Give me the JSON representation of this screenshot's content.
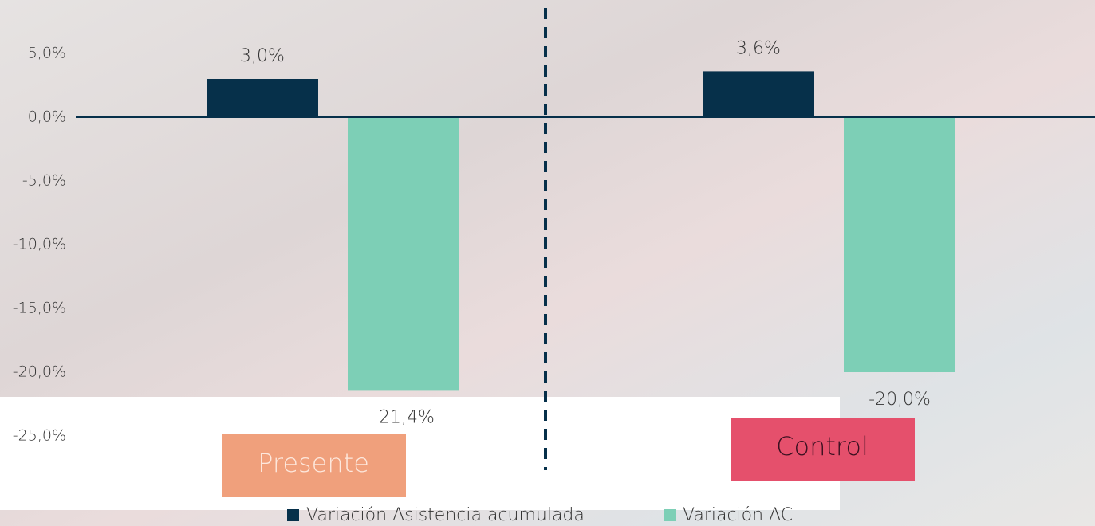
{
  "chart_data": {
    "type": "bar",
    "categories": [
      "Presente",
      "Control"
    ],
    "category_colors": [
      "#f0a07c",
      "#e5506c"
    ],
    "series": [
      {
        "name": "Variación Asistencia acumulada",
        "color": "#06304a",
        "values": [
          3.0,
          3.6
        ],
        "value_labels": [
          "3,0%",
          "3,6%"
        ]
      },
      {
        "name": "Variación AC",
        "color": "#7dcfb6",
        "values": [
          -21.4,
          -20.0
        ],
        "value_labels": [
          "-21,4%",
          "-20,0%"
        ]
      }
    ],
    "ylim": [
      -25,
      5
    ],
    "yticks": [
      {
        "value": 5,
        "label": "5,0%"
      },
      {
        "value": 0,
        "label": "0,0%"
      },
      {
        "value": -5,
        "label": "-5,0%"
      },
      {
        "value": -10,
        "label": "-10,0%"
      },
      {
        "value": -15,
        "label": "-15,0%"
      },
      {
        "value": -20,
        "label": "-20,0%"
      },
      {
        "value": -25,
        "label": "-25,0%"
      }
    ],
    "grid": false
  }
}
